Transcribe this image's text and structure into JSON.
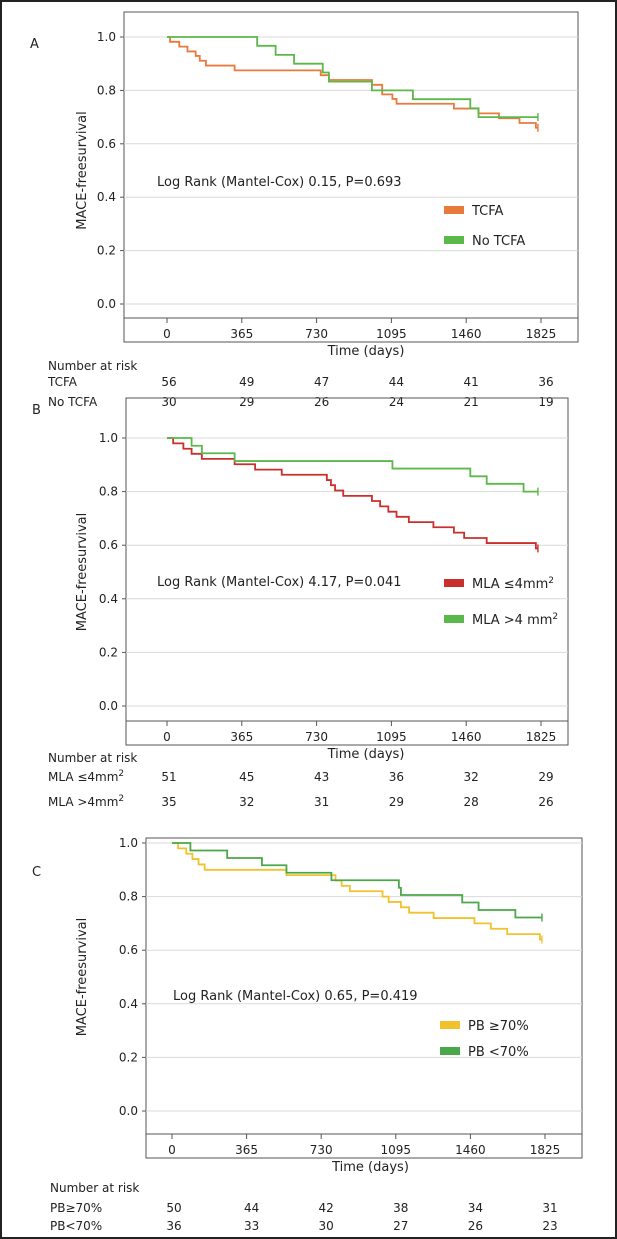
{
  "chart_data": [
    {
      "type": "line",
      "panel_label": "A",
      "xlabel": "Time (days)",
      "ylabel": "MACE-freesurvival",
      "xticks": [
        0,
        365,
        730,
        1095,
        1460,
        1825
      ],
      "yticks": [
        "0.0",
        "0.2",
        "0.4",
        "0.6",
        "0.8",
        "1.0"
      ],
      "xlim": [
        -100,
        1900
      ],
      "ylim": [
        -0.05,
        1.03
      ],
      "grid": "horizontal",
      "legend_position": "center-right",
      "annotation": "Log Rank (Mantel-Cox) 0.15,  P=0.693",
      "series": [
        {
          "name": "TCFA",
          "color": "#e87a3c",
          "points": [
            [
              0,
              1.0
            ],
            [
              15,
              0.982
            ],
            [
              60,
              0.964
            ],
            [
              100,
              0.946
            ],
            [
              140,
              0.929
            ],
            [
              160,
              0.911
            ],
            [
              190,
              0.893
            ],
            [
              330,
              0.875
            ],
            [
              750,
              0.857
            ],
            [
              790,
              0.839
            ],
            [
              1000,
              0.821
            ],
            [
              1050,
              0.785
            ],
            [
              1100,
              0.768
            ],
            [
              1120,
              0.75
            ],
            [
              1400,
              0.732
            ],
            [
              1520,
              0.714
            ],
            [
              1620,
              0.696
            ],
            [
              1720,
              0.678
            ],
            [
              1800,
              0.66
            ]
          ],
          "censor": [
            1810
          ]
        },
        {
          "name": "No TCFA",
          "color": "#5bb84a",
          "points": [
            [
              0,
              1.0
            ],
            [
              440,
              0.967
            ],
            [
              530,
              0.933
            ],
            [
              620,
              0.9
            ],
            [
              760,
              0.867
            ],
            [
              790,
              0.833
            ],
            [
              1000,
              0.8
            ],
            [
              1200,
              0.767
            ],
            [
              1480,
              0.733
            ],
            [
              1520,
              0.7
            ]
          ],
          "censor": [
            1810
          ]
        }
      ],
      "risk_title": "Number at risk",
      "risk_table": [
        {
          "label": "TCFA",
          "values": [
            "56",
            "49",
            "47",
            "44",
            "41",
            "36"
          ]
        },
        {
          "label": "No TCFA",
          "values": [
            "30",
            "29",
            "26",
            "24",
            "21",
            "19"
          ]
        }
      ]
    },
    {
      "type": "line",
      "panel_label": "B",
      "xlabel": "Time (days)",
      "ylabel": "MACE-freesurvival",
      "xticks": [
        0,
        365,
        730,
        1095,
        1460,
        1825
      ],
      "yticks": [
        "0.0",
        "0.2",
        "0.4",
        "0.6",
        "0.8",
        "1.0"
      ],
      "xlim": [
        -100,
        1900
      ],
      "ylim": [
        -0.05,
        1.03
      ],
      "grid": "horizontal",
      "legend_position": "center-right",
      "annotation": "Log Rank (Mantel-Cox) 4.17,  P=0.041",
      "series": [
        {
          "name": "MLA ≤4mm2",
          "color": "#c9302c",
          "points": [
            [
              0,
              1.0
            ],
            [
              30,
              0.98
            ],
            [
              80,
              0.96
            ],
            [
              120,
              0.941
            ],
            [
              170,
              0.922
            ],
            [
              330,
              0.902
            ],
            [
              430,
              0.882
            ],
            [
              560,
              0.863
            ],
            [
              780,
              0.843
            ],
            [
              800,
              0.824
            ],
            [
              820,
              0.804
            ],
            [
              860,
              0.784
            ],
            [
              1000,
              0.765
            ],
            [
              1040,
              0.745
            ],
            [
              1080,
              0.725
            ],
            [
              1120,
              0.706
            ],
            [
              1180,
              0.686
            ],
            [
              1300,
              0.667
            ],
            [
              1400,
              0.647
            ],
            [
              1450,
              0.627
            ],
            [
              1560,
              0.608
            ],
            [
              1800,
              0.588
            ]
          ],
          "censor": [
            1810
          ]
        },
        {
          "name": "MLA >4 mm2",
          "color": "#5bb84a",
          "points": [
            [
              0,
              1.0
            ],
            [
              120,
              0.971
            ],
            [
              170,
              0.943
            ],
            [
              330,
              0.914
            ],
            [
              1100,
              0.886
            ],
            [
              1480,
              0.857
            ],
            [
              1560,
              0.829
            ],
            [
              1740,
              0.8
            ]
          ],
          "censor": [
            1810
          ]
        }
      ],
      "risk_title": "Number at risk",
      "risk_table": [
        {
          "label": "MLA ≤4mm2",
          "values": [
            "51",
            "45",
            "43",
            "36",
            "32",
            "29"
          ]
        },
        {
          "label": "MLA >4mm2",
          "values": [
            "35",
            "32",
            "31",
            "29",
            "28",
            "26"
          ]
        }
      ]
    },
    {
      "type": "line",
      "panel_label": "C",
      "xlabel": "Time (days)",
      "ylabel": "MACE-freesurvival",
      "xticks": [
        0,
        365,
        730,
        1095,
        1460,
        1825
      ],
      "yticks": [
        "0.0",
        "0.2",
        "0.4",
        "0.6",
        "0.8",
        "1.0"
      ],
      "xlim": [
        -100,
        1900
      ],
      "ylim": [
        -0.05,
        1.03
      ],
      "grid": "horizontal",
      "legend_position": "center-right",
      "annotation": "Log Rank (Mantel-Cox) 0.65,  P=0.419",
      "series": [
        {
          "name": "PB ≥70%",
          "color": "#f2c12e",
          "points": [
            [
              0,
              1.0
            ],
            [
              30,
              0.98
            ],
            [
              70,
              0.96
            ],
            [
              100,
              0.94
            ],
            [
              130,
              0.92
            ],
            [
              160,
              0.9
            ],
            [
              560,
              0.88
            ],
            [
              800,
              0.86
            ],
            [
              830,
              0.84
            ],
            [
              870,
              0.82
            ],
            [
              1030,
              0.8
            ],
            [
              1060,
              0.78
            ],
            [
              1120,
              0.76
            ],
            [
              1160,
              0.74
            ],
            [
              1280,
              0.72
            ],
            [
              1480,
              0.7
            ],
            [
              1560,
              0.68
            ],
            [
              1640,
              0.66
            ],
            [
              1800,
              0.64
            ]
          ],
          "censor": [
            1810
          ]
        },
        {
          "name": "PB <70%",
          "color": "#4aa84a",
          "points": [
            [
              0,
              1.0
            ],
            [
              90,
              0.972
            ],
            [
              270,
              0.944
            ],
            [
              440,
              0.917
            ],
            [
              560,
              0.889
            ],
            [
              780,
              0.861
            ],
            [
              1110,
              0.833
            ],
            [
              1120,
              0.806
            ],
            [
              1420,
              0.778
            ],
            [
              1500,
              0.75
            ],
            [
              1680,
              0.722
            ]
          ],
          "censor": [
            1810
          ]
        }
      ],
      "risk_title": "Number at risk",
      "risk_table": [
        {
          "label": "PB≥70%",
          "values": [
            "50",
            "44",
            "42",
            "38",
            "34",
            "31"
          ]
        },
        {
          "label": "PB<70%",
          "values": [
            "36",
            "33",
            "30",
            "27",
            "26",
            "23"
          ]
        }
      ]
    }
  ]
}
